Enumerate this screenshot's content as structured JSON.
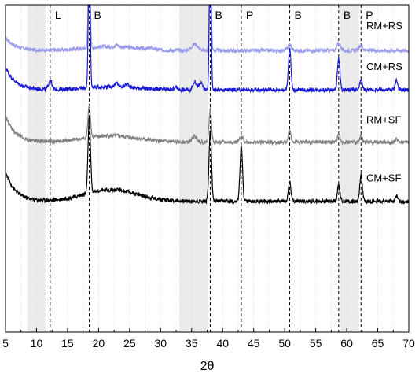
{
  "chart_data": {
    "type": "line",
    "title": "",
    "xlabel": "2θ",
    "ylabel": "",
    "xlim": [
      5,
      70
    ],
    "xticks": [
      5,
      10,
      15,
      20,
      25,
      30,
      35,
      40,
      45,
      50,
      55,
      60,
      65,
      70
    ],
    "y_axis_visible": false,
    "minor_grid": "vertical dotted lines",
    "shaded_regions": [
      {
        "x_start": 8.5,
        "x_end": 11.5,
        "color": "#ebebeb"
      },
      {
        "x_start": 33.0,
        "x_end": 37.5,
        "color": "#ebebeb"
      },
      {
        "x_start": 59.0,
        "x_end": 62.0,
        "color": "#ebebeb"
      }
    ],
    "reference_lines": [
      {
        "x": 12.2,
        "label": "L"
      },
      {
        "x": 18.5,
        "label": "B"
      },
      {
        "x": 38.0,
        "label": "B"
      },
      {
        "x": 43.0,
        "label": "P"
      },
      {
        "x": 50.8,
        "label": "B"
      },
      {
        "x": 58.7,
        "label": "B"
      },
      {
        "x": 62.3,
        "label": "P"
      }
    ],
    "series": [
      {
        "name": "RM+RS",
        "color": "#9999ee",
        "baseline": 0.86,
        "start_rise": 0.04,
        "hump": {
          "x": 22.0,
          "h": 0.012,
          "w": 6
        },
        "peaks": [
          {
            "x": 18.5,
            "h": 0.33,
            "w": 0.15
          },
          {
            "x": 22.9,
            "h": 0.006,
            "w": 0.3
          },
          {
            "x": 28.5,
            "h": 0.004,
            "w": 0.4
          },
          {
            "x": 35.5,
            "h": 0.02,
            "w": 0.5
          },
          {
            "x": 38.0,
            "h": 0.33,
            "w": 0.15
          },
          {
            "x": 50.8,
            "h": 0.018,
            "w": 0.3
          },
          {
            "x": 58.7,
            "h": 0.022,
            "w": 0.3
          },
          {
            "x": 62.3,
            "h": 0.014,
            "w": 0.3
          }
        ]
      },
      {
        "name": "CM+RS",
        "color": "#1a1ad6",
        "baseline": 0.74,
        "start_rise": 0.07,
        "hump": {
          "x": 22.0,
          "h": 0.01,
          "w": 6
        },
        "peaks": [
          {
            "x": 12.2,
            "h": 0.03,
            "w": 0.25
          },
          {
            "x": 18.5,
            "h": 0.42,
            "w": 0.15
          },
          {
            "x": 22.9,
            "h": 0.01,
            "w": 0.3
          },
          {
            "x": 24.6,
            "h": 0.01,
            "w": 0.3
          },
          {
            "x": 32.5,
            "h": 0.008,
            "w": 0.3
          },
          {
            "x": 35.5,
            "h": 0.025,
            "w": 0.3
          },
          {
            "x": 36.5,
            "h": 0.02,
            "w": 0.3
          },
          {
            "x": 38.0,
            "h": 0.42,
            "w": 0.15
          },
          {
            "x": 50.8,
            "h": 0.13,
            "w": 0.2
          },
          {
            "x": 58.7,
            "h": 0.095,
            "w": 0.2
          },
          {
            "x": 62.3,
            "h": 0.03,
            "w": 0.2
          },
          {
            "x": 68.0,
            "h": 0.03,
            "w": 0.2
          }
        ]
      },
      {
        "name": "RM+SF",
        "color": "#808080",
        "baseline": 0.58,
        "start_rise": 0.08,
        "hump": {
          "x": 22.0,
          "h": 0.02,
          "w": 6
        },
        "peaks": [
          {
            "x": 18.5,
            "h": 0.1,
            "w": 0.2
          },
          {
            "x": 35.5,
            "h": 0.018,
            "w": 0.4
          },
          {
            "x": 38.0,
            "h": 0.1,
            "w": 0.2
          },
          {
            "x": 43.0,
            "h": 0.015,
            "w": 0.3
          },
          {
            "x": 50.8,
            "h": 0.035,
            "w": 0.2
          },
          {
            "x": 58.7,
            "h": 0.028,
            "w": 0.2
          },
          {
            "x": 62.3,
            "h": 0.02,
            "w": 0.2
          },
          {
            "x": 68.0,
            "h": 0.008,
            "w": 0.3
          }
        ]
      },
      {
        "name": "CM+SF",
        "color": "#000000",
        "baseline": 0.4,
        "start_rise": 0.09,
        "hump": {
          "x": 22.0,
          "h": 0.035,
          "w": 6
        },
        "peaks": [
          {
            "x": 18.5,
            "h": 0.23,
            "w": 0.2
          },
          {
            "x": 38.0,
            "h": 0.22,
            "w": 0.2
          },
          {
            "x": 43.0,
            "h": 0.17,
            "w": 0.2
          },
          {
            "x": 50.8,
            "h": 0.06,
            "w": 0.2
          },
          {
            "x": 58.7,
            "h": 0.05,
            "w": 0.2
          },
          {
            "x": 62.3,
            "h": 0.08,
            "w": 0.2
          },
          {
            "x": 68.0,
            "h": 0.015,
            "w": 0.2
          }
        ]
      }
    ]
  }
}
